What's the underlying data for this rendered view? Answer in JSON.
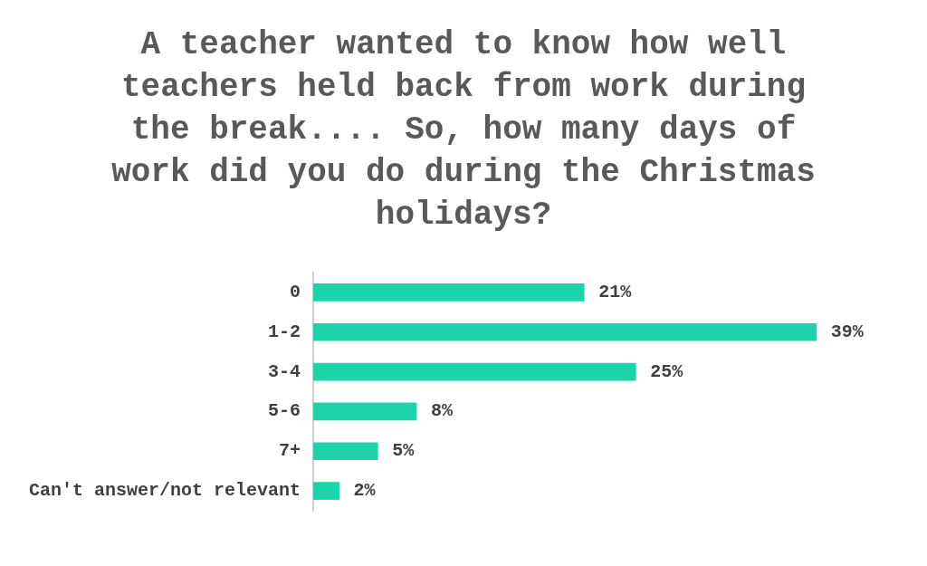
{
  "chart_data": {
    "type": "bar",
    "orientation": "horizontal",
    "title": "A teacher wanted to know how well teachers held back from work during the break.... So, how many days of work did you do during the Christmas holidays?",
    "categories": [
      "0",
      "1-2",
      "3-4",
      "5-6",
      "7+",
      "Can't answer/not relevant"
    ],
    "values": [
      21,
      39,
      25,
      8,
      5,
      2
    ],
    "value_labels": [
      "21%",
      "39%",
      "25%",
      "8%",
      "5%",
      "2%"
    ],
    "color": "#1fd3a8",
    "tick_labels": "y",
    "legend": false
  }
}
